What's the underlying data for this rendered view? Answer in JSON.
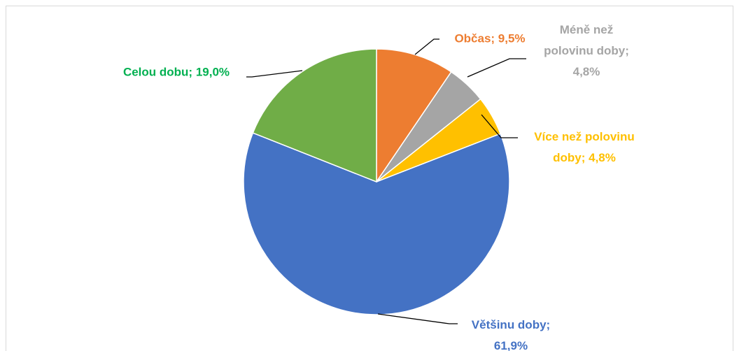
{
  "chart_data": {
    "type": "pie",
    "values": [
      9.5,
      4.8,
      4.8,
      61.9,
      19.0
    ],
    "value_labels": [
      "Občas; 9,5%",
      "Méně než polovinu doby; 4,8%",
      "Více než polovinu doby; 4,8%",
      "Většinu doby; 61,9%",
      "Celou dobu; 19,0%"
    ],
    "colors": [
      "#ed7d31",
      "#a5a5a5",
      "#ffc000",
      "#4472c4",
      "#70ad47"
    ],
    "label_colors": [
      "#ed7d31",
      "#a5a5a5",
      "#ffc000",
      "#4472c4",
      "#00b050"
    ]
  }
}
